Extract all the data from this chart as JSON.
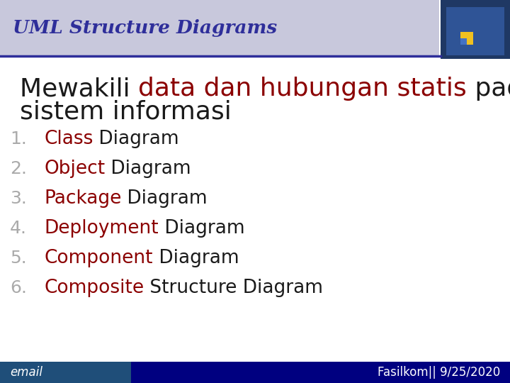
{
  "title": "UML Structure Diagrams",
  "title_color": "#2E2E9A",
  "title_bg_color": "#C8C8DC",
  "header_line_color": "#2E2E9A",
  "body_bg_color": "#FFFFFF",
  "items": [
    {
      "num": "1.",
      "colored": "Class",
      "rest": " Diagram"
    },
    {
      "num": "2.",
      "colored": "Object",
      "rest": " Diagram"
    },
    {
      "num": "3.",
      "colored": "Package",
      "rest": " Diagram"
    },
    {
      "num": "4.",
      "colored": "Deployment",
      "rest": " Diagram"
    },
    {
      "num": "5.",
      "colored": "Component",
      "rest": " Diagram"
    },
    {
      "num": "6.",
      "colored": "Composite",
      "rest": " Structure Diagram"
    }
  ],
  "item_color": "#8B0000",
  "num_color": "#AAAAAA",
  "item_fontsize": 19,
  "subtitle_fontsize": 26,
  "title_fontsize": 19,
  "footer_left_text": "email",
  "footer_right_text": "Fasilkom|| 9/25/2020",
  "footer_left_bg": "#1F4E79",
  "footer_right_bg": "#000080",
  "footer_text_color": "#FFFFFF",
  "footer_fontsize": 12,
  "logo_outer_color": "#1F3864",
  "logo_inner_color": "#2F5496",
  "logo_circle_color": "#C8C8DC"
}
